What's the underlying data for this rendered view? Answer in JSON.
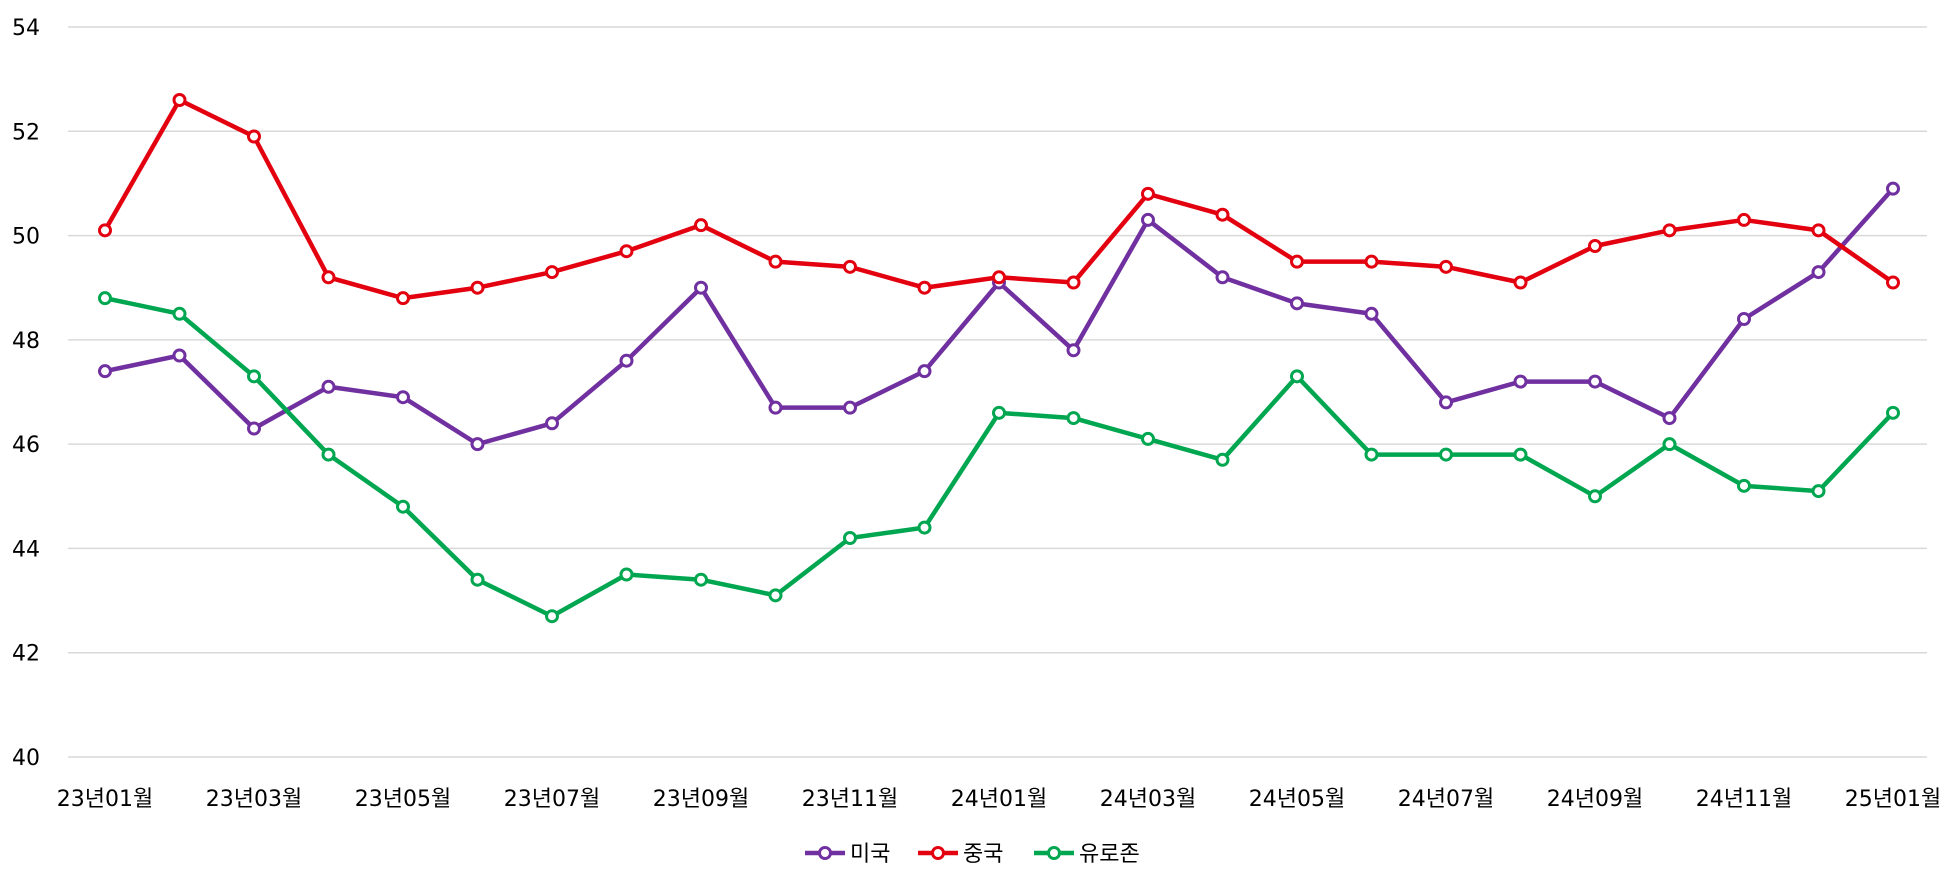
{
  "chart_data": {
    "type": "line",
    "title": "",
    "xlabel": "",
    "ylabel": "",
    "ylim": [
      40,
      54
    ],
    "yticks": [
      40,
      42,
      44,
      46,
      48,
      50,
      52,
      54
    ],
    "grid": true,
    "legend_position": "bottom",
    "categories": [
      "23년01월",
      "23년02월",
      "23년03월",
      "23년04월",
      "23년05월",
      "23년06월",
      "23년07월",
      "23년08월",
      "23년09월",
      "23년10월",
      "23년11월",
      "23년12월",
      "24년01월",
      "24년02월",
      "24년03월",
      "24년04월",
      "24년05월",
      "24년06월",
      "24년07월",
      "24년08월",
      "24년09월",
      "24년10월",
      "24년11월",
      "24년12월",
      "25년01월"
    ],
    "x_tick_labels": [
      "23년01월",
      "23년03월",
      "23년05월",
      "23년07월",
      "23년09월",
      "23년11월",
      "24년01월",
      "24년03월",
      "24년05월",
      "24년07월",
      "24년09월",
      "24년11월",
      "25년01월"
    ],
    "series": [
      {
        "name": "미국",
        "color": "#7030a0",
        "values": [
          47.4,
          47.7,
          46.3,
          47.1,
          46.9,
          46.0,
          46.4,
          47.6,
          49.0,
          46.7,
          46.7,
          47.4,
          49.1,
          47.8,
          50.3,
          49.2,
          48.7,
          48.5,
          46.8,
          47.2,
          47.2,
          46.5,
          48.4,
          49.3,
          50.9
        ]
      },
      {
        "name": "중국",
        "color": "#e3000f",
        "values": [
          50.1,
          52.6,
          51.9,
          49.2,
          48.8,
          49.0,
          49.3,
          49.7,
          50.2,
          49.5,
          49.4,
          49.0,
          49.2,
          49.1,
          50.8,
          50.4,
          49.5,
          49.5,
          49.4,
          49.1,
          49.8,
          50.1,
          50.3,
          50.1,
          49.1
        ]
      },
      {
        "name": "유로존",
        "color": "#00a650",
        "values": [
          48.8,
          48.5,
          47.3,
          45.8,
          44.8,
          43.4,
          42.7,
          43.5,
          43.4,
          43.1,
          44.2,
          44.4,
          46.6,
          46.5,
          46.1,
          45.7,
          47.3,
          45.8,
          45.8,
          45.8,
          45.0,
          46.0,
          45.2,
          45.1,
          46.6
        ]
      }
    ]
  }
}
